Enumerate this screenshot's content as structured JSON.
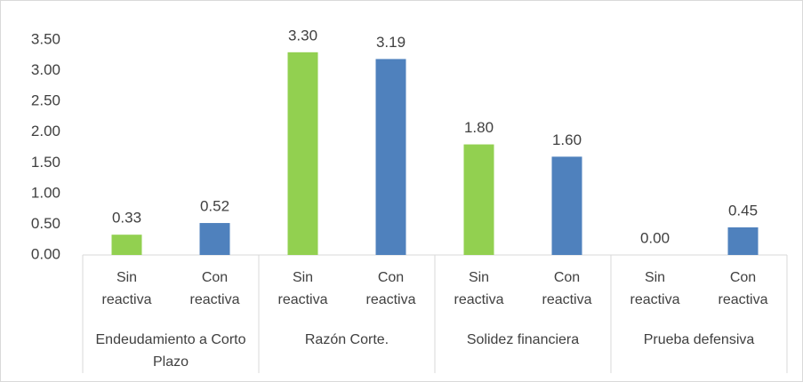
{
  "chart_data": {
    "type": "bar",
    "groups": [
      "Endeudamiento a Corto Plazo",
      "Razón Corte.",
      "Solidez financiera",
      "Prueba defensiva"
    ],
    "categories": [
      "Sin reactiva",
      "Con reactiva",
      "Sin reactiva",
      "Con reactiva",
      "Sin reactiva",
      "Con reactiva",
      "Sin reactiva",
      "Con reactiva"
    ],
    "values": [
      0.33,
      0.52,
      3.3,
      3.19,
      1.8,
      1.6,
      0.0,
      0.45
    ],
    "value_labels": [
      "0.33",
      "0.52",
      "3.30",
      "3.19",
      "1.80",
      "1.60",
      "0.00",
      "0.45"
    ],
    "colors": [
      "#92d050",
      "#4f81bd",
      "#92d050",
      "#4f81bd",
      "#92d050",
      "#4f81bd",
      "#92d050",
      "#4f81bd"
    ],
    "ylim": [
      0,
      3.5
    ],
    "yticks": [
      {
        "value": 0,
        "label": "0.00"
      },
      {
        "value": 0.5,
        "label": "0.50"
      },
      {
        "value": 1,
        "label": "1.00"
      },
      {
        "value": 1.5,
        "label": "1.50"
      },
      {
        "value": 2,
        "label": "2.00"
      },
      {
        "value": 2.5,
        "label": "2.50"
      },
      {
        "value": 3,
        "label": "3.00"
      },
      {
        "value": 3.5,
        "label": "3.50"
      }
    ],
    "grid": false
  }
}
